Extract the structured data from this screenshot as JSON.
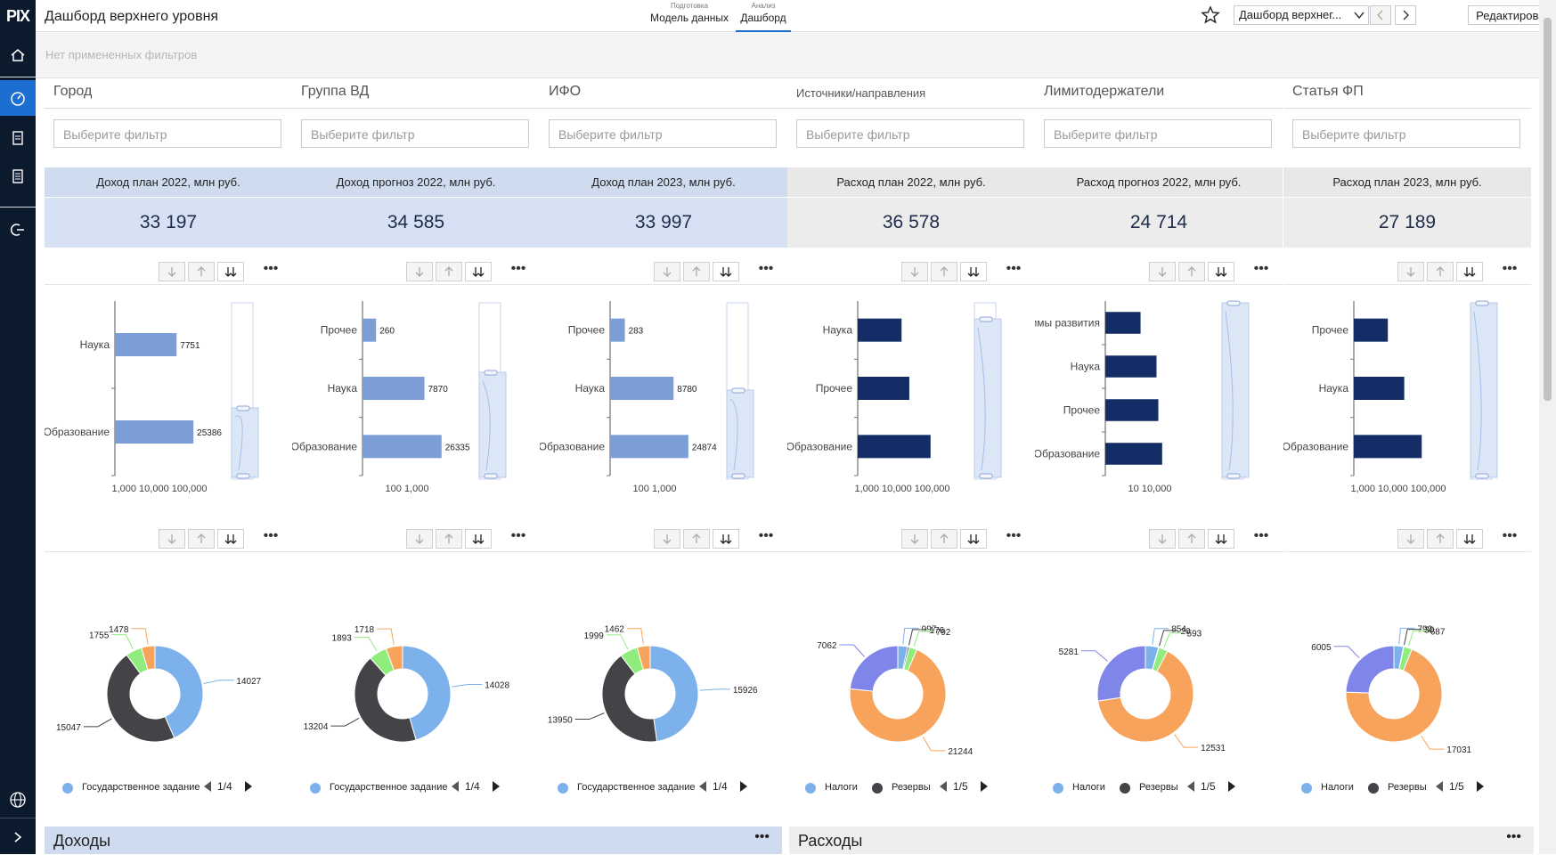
{
  "app": {
    "logo": "PIX",
    "title": "Дашборд верхнего уровня"
  },
  "top_tabs": [
    {
      "small": "Подготовка",
      "label": "Модель данных"
    },
    {
      "small": "Анализ",
      "label": "Дашборд"
    }
  ],
  "header": {
    "dashboard_select": "Дашборд верхнег...",
    "edit_label": "Редактировать"
  },
  "filters_bar": {
    "text": "Нет примененных фильтров"
  },
  "filter_placeholder": "Выберите фильтр",
  "columns": [
    {
      "filter_label": "Город",
      "kpi_label": "Доход план 2022, млн руб.",
      "kpi_value": "33 197"
    },
    {
      "filter_label": "Группа ВД",
      "kpi_label": "Доход прогноз 2022, млн руб.",
      "kpi_value": "34 585"
    },
    {
      "filter_label": "ИФО",
      "kpi_label": "Доход план 2023, млн руб.",
      "kpi_value": "33 997"
    },
    {
      "filter_label": "Источники/направления",
      "kpi_label": "Расход план 2022, млн руб.",
      "kpi_value": "36 578"
    },
    {
      "filter_label": "Лимитодержатели",
      "kpi_label": "Расход прогноз 2022, млн руб.",
      "kpi_value": "24 714"
    },
    {
      "filter_label": "Статья ФП",
      "kpi_label": "Расход план 2023, млн руб.",
      "kpi_value": "27 189"
    }
  ],
  "colors": {
    "income_header": "#cfdcf0",
    "income_value": "#d6e2f3",
    "expense_header": "#e8e8e8",
    "expense_value": "#ececec",
    "bar_light": "#7b9ed6",
    "bar_dark": "#142d66",
    "sidebar": "#0b1a2d",
    "active_nav": "#1c6fd0"
  },
  "legends": [
    {
      "items": [
        "Государственное задание"
      ],
      "pager": "1/4"
    },
    {
      "items": [
        "Государственное задание"
      ],
      "pager": "1/4"
    },
    {
      "items": [
        "Государственное задание"
      ],
      "pager": "1/4"
    },
    {
      "items": [
        "Налоги",
        "Резервы"
      ],
      "pager": "1/5"
    },
    {
      "items": [
        "Налоги",
        "Резервы"
      ],
      "pager": "1/5"
    },
    {
      "items": [
        "Налоги",
        "Резервы"
      ],
      "pager": "1/5"
    }
  ],
  "sections": {
    "income": "Доходы",
    "expense": "Расходы"
  },
  "chart_data": [
    {
      "type": "bar",
      "orientation": "horizontal",
      "scale": "log",
      "categories": [
        "Наука",
        "Образование"
      ],
      "values": [
        7751,
        25386
      ],
      "x_ticks": [
        "1,000",
        "10,000",
        "100,000"
      ],
      "color": "#7b9ed6"
    },
    {
      "type": "bar",
      "orientation": "horizontal",
      "scale": "log",
      "categories": [
        "Прочее",
        "Наука",
        "Образование"
      ],
      "values": [
        260,
        7870,
        26335
      ],
      "x_ticks": [
        "100",
        "1,000"
      ],
      "color": "#7b9ed6"
    },
    {
      "type": "bar",
      "orientation": "horizontal",
      "scale": "log",
      "categories": [
        "Прочее",
        "Наука",
        "Образование"
      ],
      "values": [
        283,
        8780,
        24874
      ],
      "x_ticks": [
        "100",
        "1,000"
      ],
      "color": "#7b9ed6"
    },
    {
      "type": "bar",
      "orientation": "horizontal",
      "scale": "log",
      "categories": [
        "Наука",
        "Прочее",
        "Образование"
      ],
      "values": [
        2200,
        3800,
        17000
      ],
      "x_ticks": [
        "1,000",
        "10,000",
        "100,000"
      ],
      "color": "#142d66"
    },
    {
      "type": "bar",
      "orientation": "horizontal",
      "scale": "log",
      "categories": [
        "Программы развития",
        "Наука",
        "Прочее",
        "Образование"
      ],
      "values": [
        1200,
        3700,
        4200,
        5500
      ],
      "x_ticks": [
        "10",
        "10,000"
      ],
      "color": "#142d66"
    },
    {
      "type": "bar",
      "orientation": "horizontal",
      "scale": "log",
      "categories": [
        "Прочее",
        "Наука",
        "Образование"
      ],
      "values": [
        1100,
        3500,
        12000
      ],
      "x_ticks": [
        "1,000",
        "10,000",
        "100,000"
      ],
      "color": "#142d66"
    },
    {
      "type": "pie",
      "donut": true,
      "values": [
        14027,
        15047,
        1755,
        1478
      ],
      "colors": [
        "#7cb1ec",
        "#434348",
        "#90ed7d",
        "#f7a35c"
      ]
    },
    {
      "type": "pie",
      "donut": true,
      "values": [
        14028,
        13204,
        1893,
        1718
      ],
      "colors": [
        "#7cb1ec",
        "#434348",
        "#90ed7d",
        "#f7a35c"
      ]
    },
    {
      "type": "pie",
      "donut": true,
      "values": [
        15926,
        13950,
        1999,
        1462
      ],
      "colors": [
        "#7cb1ec",
        "#434348",
        "#90ed7d",
        "#f7a35c"
      ]
    },
    {
      "type": "pie",
      "donut": true,
      "values": [
        997,
        176,
        792,
        21244,
        7062
      ],
      "colors": [
        "#7cb1ec",
        "#434348",
        "#90ed7d",
        "#f7a35c",
        "#8085e9"
      ]
    },
    {
      "type": "pie",
      "donut": true,
      "values": [
        854,
        20,
        593,
        12531,
        5281
      ],
      "colors": [
        "#7cb1ec",
        "#434348",
        "#90ed7d",
        "#f7a35c",
        "#8085e9"
      ]
    },
    {
      "type": "pie",
      "donut": true,
      "values": [
        792,
        30,
        687,
        17031,
        6005
      ],
      "colors": [
        "#7cb1ec",
        "#434348",
        "#90ed7d",
        "#f7a35c",
        "#8085e9"
      ]
    }
  ]
}
